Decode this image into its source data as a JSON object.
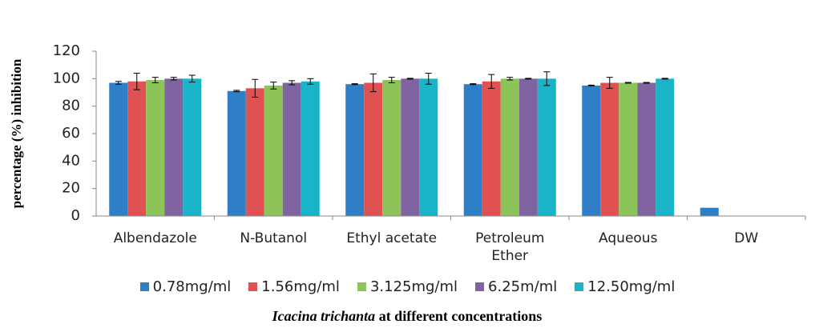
{
  "chart_data": {
    "type": "bar",
    "y_label": "percentage (%) inhibition",
    "x_label_italic": "Icacina trichanta",
    "x_label_rest": "at different concentrations",
    "categories": [
      "Albendazole",
      "N-Butanol",
      "Ethyl acetate",
      "Petroleum Ether",
      "Aqueous",
      "DW"
    ],
    "series": [
      {
        "name": "0.78mg/ml",
        "color": "#2e7fc6",
        "values": [
          97,
          91,
          96,
          96,
          95,
          6
        ],
        "errors": [
          1,
          0.5,
          0.3,
          0.3,
          0.3,
          null
        ]
      },
      {
        "name": "1.56mg/ml",
        "color": "#e05252",
        "values": [
          98,
          93,
          97,
          98,
          97,
          null
        ],
        "errors": [
          6,
          6.5,
          6.5,
          5,
          4,
          null
        ]
      },
      {
        "name": "3.125mg/ml",
        "color": "#8cc45a",
        "values": [
          99,
          95,
          99,
          100,
          97,
          null
        ],
        "errors": [
          2,
          2.5,
          2,
          1,
          0.3,
          null
        ]
      },
      {
        "name": "6.25m/ml",
        "color": "#8064a2",
        "values": [
          100,
          97,
          100,
          100,
          97,
          null
        ],
        "errors": [
          1,
          1.5,
          0.3,
          0.3,
          0.3,
          null
        ]
      },
      {
        "name": "12.50mg/ml",
        "color": "#1ab4c8",
        "values": [
          100,
          98,
          100,
          100,
          100,
          null
        ],
        "errors": [
          2.5,
          2,
          4,
          5,
          0.3,
          null
        ]
      }
    ],
    "ylim": [
      0,
      120
    ],
    "yticks": [
      0,
      20,
      40,
      60,
      80,
      100,
      120
    ]
  }
}
